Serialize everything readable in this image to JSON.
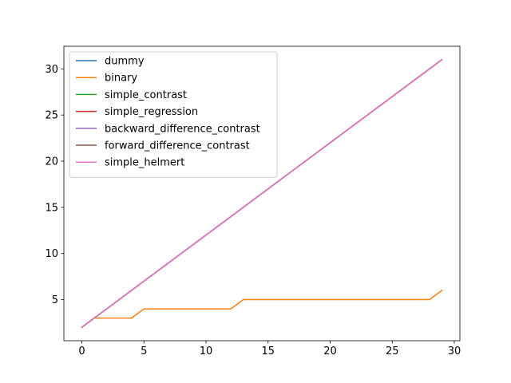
{
  "chart_data": {
    "type": "line",
    "title": "",
    "xlabel": "",
    "ylabel": "",
    "xlim": [
      -1.45,
      30.45
    ],
    "ylim": [
      0.55,
      32.45
    ],
    "x_ticks": [
      0,
      5,
      10,
      15,
      20,
      25,
      30
    ],
    "y_ticks": [
      5,
      10,
      15,
      20,
      25,
      30
    ],
    "grid": false,
    "legend_position": "upper-left",
    "x": [
      0,
      1,
      2,
      3,
      4,
      5,
      6,
      7,
      8,
      9,
      10,
      11,
      12,
      13,
      14,
      15,
      16,
      17,
      18,
      19,
      20,
      21,
      22,
      23,
      24,
      25,
      26,
      27,
      28,
      29
    ],
    "series": [
      {
        "name": "dummy",
        "color": "#1f77b4",
        "values": [
          2,
          3,
          4,
          5,
          6,
          7,
          8,
          9,
          10,
          11,
          12,
          13,
          14,
          15,
          16,
          17,
          18,
          19,
          20,
          21,
          22,
          23,
          24,
          25,
          26,
          27,
          28,
          29,
          30,
          31
        ]
      },
      {
        "name": "binary",
        "color": "#ff7f0e",
        "values": [
          2,
          3,
          3,
          3,
          3,
          4,
          4,
          4,
          4,
          4,
          4,
          4,
          4,
          5,
          5,
          5,
          5,
          5,
          5,
          5,
          5,
          5,
          5,
          5,
          5,
          5,
          5,
          5,
          5,
          6
        ]
      },
      {
        "name": "simple_contrast",
        "color": "#2ca02c",
        "values": [
          2,
          3,
          4,
          5,
          6,
          7,
          8,
          9,
          10,
          11,
          12,
          13,
          14,
          15,
          16,
          17,
          18,
          19,
          20,
          21,
          22,
          23,
          24,
          25,
          26,
          27,
          28,
          29,
          30,
          31
        ]
      },
      {
        "name": "simple_regression",
        "color": "#d62728",
        "values": [
          2,
          3,
          4,
          5,
          6,
          7,
          8,
          9,
          10,
          11,
          12,
          13,
          14,
          15,
          16,
          17,
          18,
          19,
          20,
          21,
          22,
          23,
          24,
          25,
          26,
          27,
          28,
          29,
          30,
          31
        ]
      },
      {
        "name": "backward_difference_contrast",
        "color": "#9467bd",
        "values": [
          2,
          3,
          4,
          5,
          6,
          7,
          8,
          9,
          10,
          11,
          12,
          13,
          14,
          15,
          16,
          17,
          18,
          19,
          20,
          21,
          22,
          23,
          24,
          25,
          26,
          27,
          28,
          29,
          30,
          31
        ]
      },
      {
        "name": "forward_difference_contrast",
        "color": "#8c564b",
        "values": [
          2,
          3,
          4,
          5,
          6,
          7,
          8,
          9,
          10,
          11,
          12,
          13,
          14,
          15,
          16,
          17,
          18,
          19,
          20,
          21,
          22,
          23,
          24,
          25,
          26,
          27,
          28,
          29,
          30,
          31
        ]
      },
      {
        "name": "simple_helmert",
        "color": "#e377c2",
        "values": [
          2,
          3,
          4,
          5,
          6,
          7,
          8,
          9,
          10,
          11,
          12,
          13,
          14,
          15,
          16,
          17,
          18,
          19,
          20,
          21,
          22,
          23,
          24,
          25,
          26,
          27,
          28,
          29,
          30,
          31
        ]
      }
    ]
  }
}
